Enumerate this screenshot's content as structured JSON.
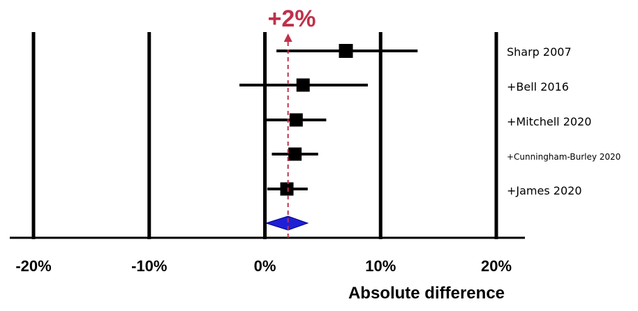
{
  "chart_data": {
    "type": "scatter",
    "xlabel": "Absolute difference",
    "xlim": [
      -20,
      20
    ],
    "x_ticks": [
      {
        "value": -20,
        "label": "-20%"
      },
      {
        "value": -10,
        "label": "-10%"
      },
      {
        "value": 0,
        "label": "0%"
      },
      {
        "value": 10,
        "label": "10%"
      },
      {
        "value": 20,
        "label": "20%"
      }
    ],
    "studies": [
      {
        "label": "Sharp 2007",
        "estimate": 7.0,
        "ci_low": 1.0,
        "ci_high": 13.2
      },
      {
        "label": "+Bell 2016",
        "estimate": 3.3,
        "ci_low": -2.2,
        "ci_high": 8.9
      },
      {
        "label": "+Mitchell 2020",
        "estimate": 2.7,
        "ci_low": 0.1,
        "ci_high": 5.3
      },
      {
        "label": "+Cunningham-Burley 2020",
        "estimate": 2.6,
        "ci_low": 0.6,
        "ci_high": 4.6
      },
      {
        "label": "+James 2020",
        "estimate": 1.9,
        "ci_low": 0.2,
        "ci_high": 3.7
      }
    ],
    "pooled": {
      "estimate": 2.0,
      "ci_low": 0.1,
      "ci_high": 3.7,
      "label": "+2%"
    },
    "colors": {
      "marker": "#000000",
      "pooled": "#1f1fd6",
      "reference": "#c0304a"
    }
  }
}
